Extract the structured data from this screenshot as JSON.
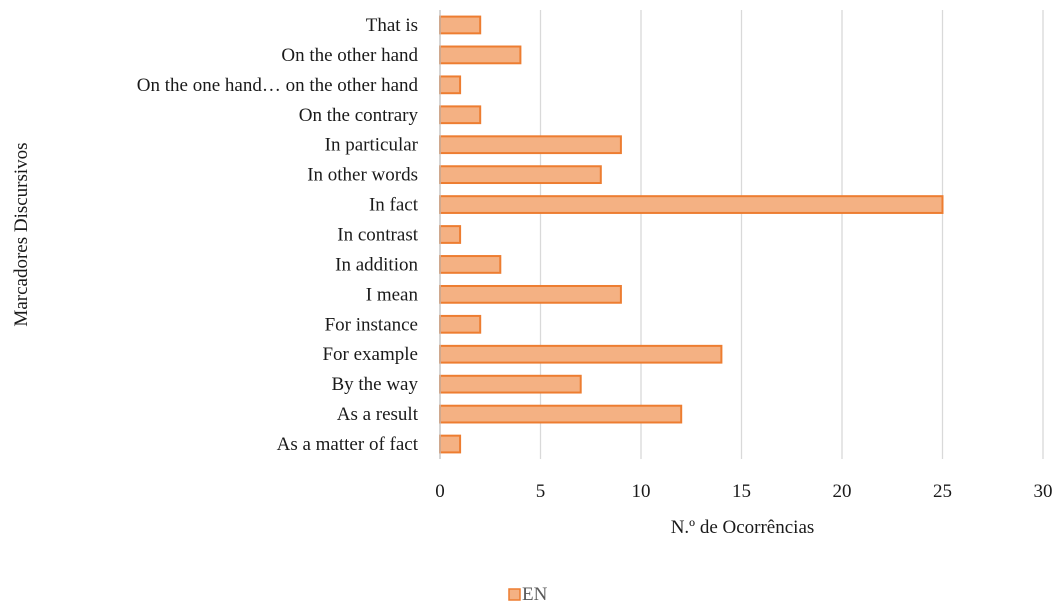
{
  "chart_data": {
    "type": "bar",
    "orientation": "horizontal",
    "categories": [
      "That is",
      "On the other hand",
      "On the one hand… on the other hand",
      "On the contrary",
      "In particular",
      "In other words",
      "In fact",
      "In contrast",
      "In addition",
      "I mean",
      "For instance",
      "For example",
      "By the way",
      "As a result",
      "As a matter of fact"
    ],
    "series": [
      {
        "name": "EN",
        "values": [
          2,
          4,
          1,
          2,
          9,
          8,
          25,
          1,
          3,
          9,
          2,
          14,
          7,
          12,
          1
        ],
        "fill": "#f4b183",
        "stroke": "#ed7d31"
      }
    ],
    "xlabel": "N.º de Ocorrências",
    "ylabel": "Marcadores Discursivos",
    "xlim": [
      0,
      30
    ],
    "xticks": [
      "0",
      "5",
      "10",
      "15",
      "20",
      "25",
      "30"
    ],
    "grid": true,
    "legend_position": "bottom"
  }
}
